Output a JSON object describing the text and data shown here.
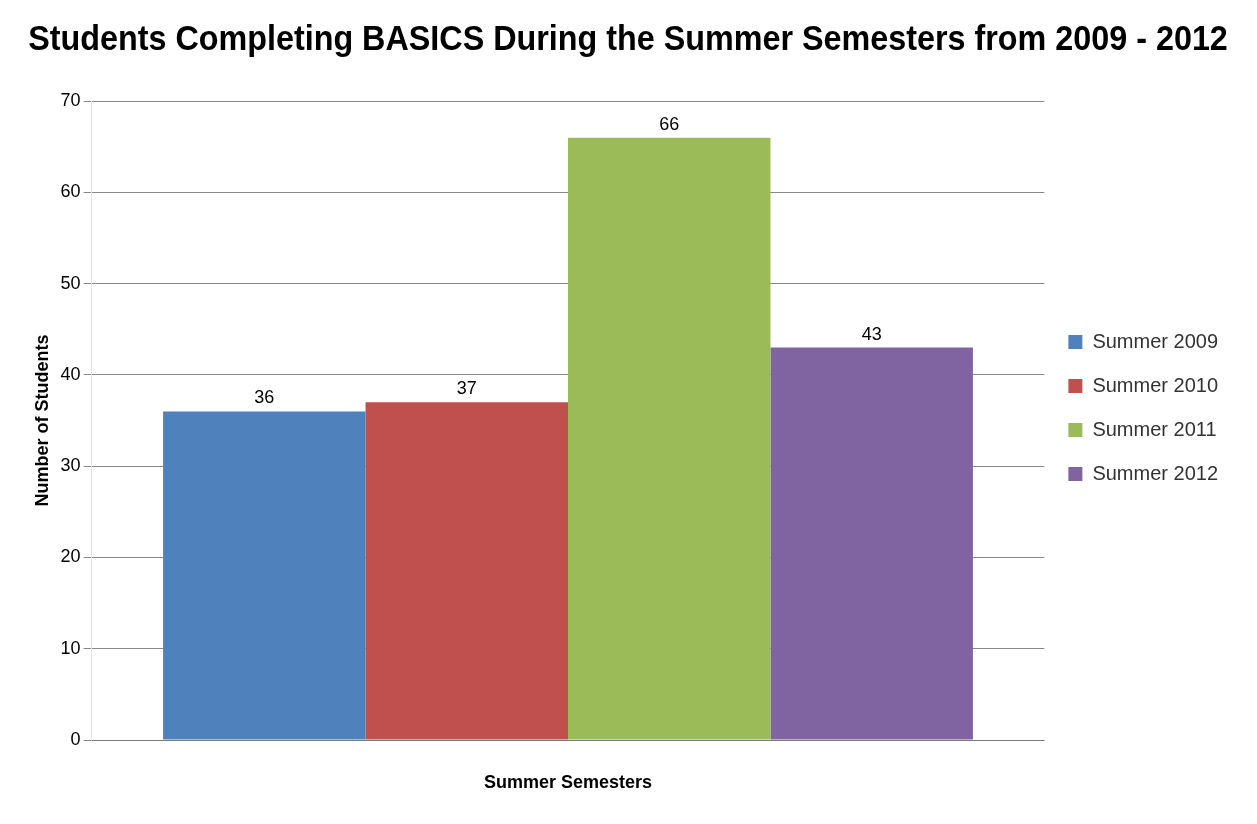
{
  "chart_data": {
    "type": "bar",
    "title": "Students Completing BASICS During the Summer Semesters from 2009 - 2012",
    "xlabel": "Summer Semesters",
    "ylabel": "Number of Students",
    "categories": [
      null
    ],
    "series": [
      {
        "name": "Summer 2009",
        "color": "#4f81bd",
        "values": [
          36
        ]
      },
      {
        "name": "Summer 2010",
        "color": "#c0504d",
        "values": [
          37
        ]
      },
      {
        "name": "Summer 2011",
        "color": "#9bbb59",
        "values": [
          66
        ]
      },
      {
        "name": "Summer 2012",
        "color": "#8064a2",
        "values": [
          43
        ]
      }
    ],
    "ylim": [
      0,
      70
    ],
    "yticks": [
      0,
      10,
      20,
      30,
      40,
      50,
      60,
      70
    ],
    "grid": "y",
    "legend": "right",
    "data_labels": true
  }
}
